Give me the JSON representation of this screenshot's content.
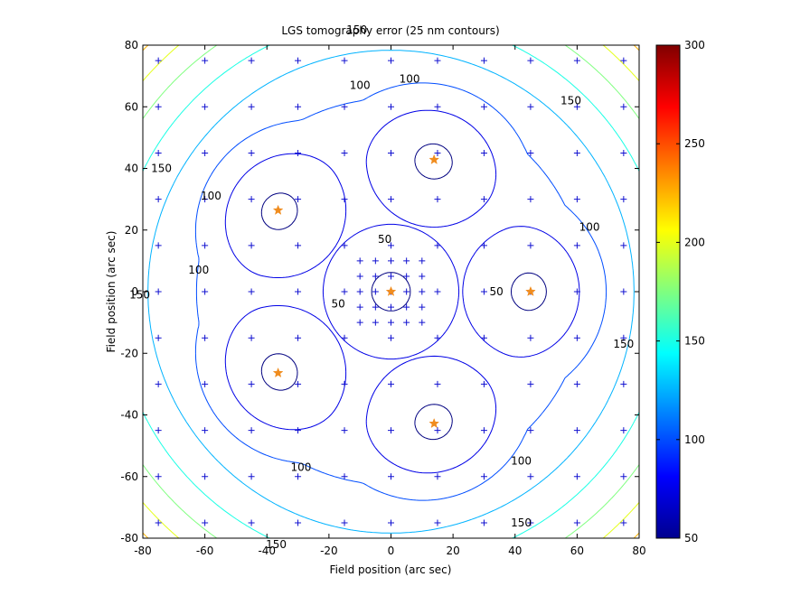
{
  "chart_data": {
    "type": "contour",
    "title": "LGS tomography error (25 nm contours)",
    "xlabel": "Field position (arc sec)",
    "ylabel": "Field position (arc sec)",
    "xlim": [
      -80,
      80
    ],
    "ylim": [
      -80,
      80
    ],
    "xticks": [
      "-80",
      "-60",
      "-40",
      "-20",
      "0",
      "20",
      "40",
      "60",
      "80"
    ],
    "yticks": [
      "80",
      "60",
      "40",
      "20",
      "0",
      "-20",
      "-40",
      "-60",
      "-80"
    ],
    "xtick_values": [
      -80,
      -60,
      -40,
      -20,
      0,
      20,
      40,
      60,
      80
    ],
    "ytick_values": [
      80,
      60,
      40,
      20,
      0,
      -20,
      -40,
      -60,
      -80
    ],
    "grid": false,
    "colorbar": {
      "range": [
        50,
        300
      ],
      "ticks": [
        "300",
        "250",
        "200",
        "150",
        "100",
        "50"
      ],
      "tick_values": [
        300,
        250,
        200,
        150,
        100,
        50
      ],
      "colormap": "jet"
    },
    "contour_levels": [
      50,
      75,
      100,
      125,
      150,
      175,
      200,
      225,
      250,
      275
    ],
    "contour_labels": [
      {
        "text": "50",
        "x": -2,
        "y": 17
      },
      {
        "text": "50",
        "x": -17,
        "y": -4
      },
      {
        "text": "50",
        "x": 34,
        "y": 0
      },
      {
        "text": "100",
        "x": -10,
        "y": 67
      },
      {
        "text": "100",
        "x": -58,
        "y": 31
      },
      {
        "text": "100",
        "x": -62,
        "y": 7
      },
      {
        "text": "100",
        "x": 6,
        "y": 69
      },
      {
        "text": "100",
        "x": 64,
        "y": 21
      },
      {
        "text": "100",
        "x": 42,
        "y": -55
      },
      {
        "text": "100",
        "x": -29,
        "y": -57
      },
      {
        "text": "150",
        "x": -11,
        "y": 85
      },
      {
        "text": "150",
        "x": -74,
        "y": 40
      },
      {
        "text": "150",
        "x": -81,
        "y": -1
      },
      {
        "text": "150",
        "x": 58,
        "y": 62
      },
      {
        "text": "150",
        "x": 75,
        "y": -17
      },
      {
        "text": "150",
        "x": 42,
        "y": -75
      },
      {
        "text": "150",
        "x": -37,
        "y": -82
      }
    ],
    "sample_grid": {
      "positions": [
        -75,
        -60,
        -45,
        -30,
        -15,
        0,
        15,
        30,
        45,
        60,
        75
      ],
      "inner_positions": [
        -10,
        -5,
        0,
        5,
        10
      ],
      "marker": "+",
      "color": "#1010d0"
    },
    "lgs_stars": {
      "marker": "star",
      "color": "#f08c1e",
      "points": [
        {
          "x": 0,
          "y": 0
        },
        {
          "x": 45,
          "y": 0
        },
        {
          "x": 13.9,
          "y": 42.8
        },
        {
          "x": -36.4,
          "y": 26.4
        },
        {
          "x": -36.4,
          "y": -26.4
        },
        {
          "x": 13.9,
          "y": -42.8
        }
      ]
    }
  }
}
